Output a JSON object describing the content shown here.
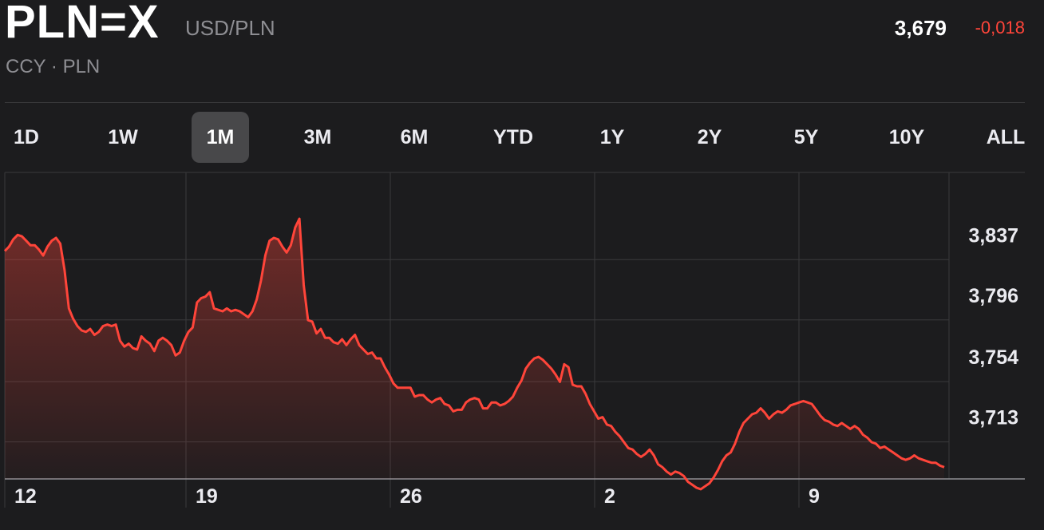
{
  "header": {
    "symbol": "PLN=X",
    "pair": "USD/PLN",
    "subtitle": "CCY · PLN",
    "price": "3,679",
    "change": "-0,018"
  },
  "ranges": [
    {
      "label": "1D",
      "active": false
    },
    {
      "label": "1W",
      "active": false
    },
    {
      "label": "1M",
      "active": true
    },
    {
      "label": "3M",
      "active": false
    },
    {
      "label": "6M",
      "active": false
    },
    {
      "label": "YTD",
      "active": false
    },
    {
      "label": "1Y",
      "active": false
    },
    {
      "label": "2Y",
      "active": false
    },
    {
      "label": "5Y",
      "active": false
    },
    {
      "label": "10Y",
      "active": false
    },
    {
      "label": "ALL",
      "active": false
    }
  ],
  "colors": {
    "line": "#ff453a",
    "positive_gain": "#ff453a",
    "background": "#1c1c1e"
  },
  "chart_data": {
    "type": "area",
    "title": "",
    "xlabel": "",
    "ylabel": "",
    "x_tick_labels": [
      "12",
      "19",
      "26",
      "2",
      "9"
    ],
    "y_tick_labels": [
      "3,837",
      "3,796",
      "3,754",
      "3,713"
    ],
    "y_ticks": [
      3.837,
      3.796,
      3.754,
      3.713
    ],
    "ylim": [
      3.671,
      3.8795
    ],
    "grid": true,
    "series": [
      {
        "values": [
          3.826,
          3.829,
          3.834,
          3.837,
          3.836,
          3.833,
          3.83,
          3.83,
          3.827,
          3.823,
          3.829,
          3.833,
          3.835,
          3.831,
          3.813,
          3.787,
          3.78,
          3.775,
          3.772,
          3.771,
          3.773,
          3.769,
          3.771,
          3.775,
          3.776,
          3.775,
          3.776,
          3.765,
          3.761,
          3.763,
          3.76,
          3.759,
          3.768,
          3.765,
          3.763,
          3.758,
          3.765,
          3.767,
          3.765,
          3.762,
          3.755,
          3.757,
          3.765,
          3.771,
          3.774,
          3.791,
          3.794,
          3.795,
          3.798,
          3.787,
          3.786,
          3.785,
          3.787,
          3.785,
          3.786,
          3.785,
          3.783,
          3.781,
          3.785,
          3.793,
          3.806,
          3.823,
          3.833,
          3.835,
          3.834,
          3.829,
          3.825,
          3.83,
          3.842,
          3.848,
          3.803,
          3.779,
          3.778,
          3.77,
          3.773,
          3.767,
          3.767,
          3.764,
          3.763,
          3.766,
          3.762,
          3.766,
          3.769,
          3.762,
          3.759,
          3.756,
          3.757,
          3.753,
          3.753,
          3.747,
          3.742,
          3.736,
          3.733,
          3.733,
          3.733,
          3.733,
          3.727,
          3.728,
          3.728,
          3.725,
          3.723,
          3.725,
          3.726,
          3.722,
          3.721,
          3.717,
          3.718,
          3.718,
          3.723,
          3.725,
          3.726,
          3.725,
          3.719,
          3.719,
          3.723,
          3.723,
          3.721,
          3.722,
          3.724,
          3.727,
          3.733,
          3.738,
          3.746,
          3.75,
          3.753,
          3.754,
          3.752,
          3.749,
          3.746,
          3.742,
          3.737,
          3.749,
          3.747,
          3.735,
          3.734,
          3.734,
          3.729,
          3.722,
          3.717,
          3.712,
          3.713,
          3.708,
          3.707,
          3.703,
          3.7,
          3.696,
          3.692,
          3.691,
          3.688,
          3.686,
          3.688,
          3.691,
          3.687,
          3.681,
          3.679,
          3.676,
          3.674,
          3.676,
          3.675,
          3.673,
          3.669,
          3.667,
          3.665,
          3.664,
          3.666,
          3.668,
          3.672,
          3.677,
          3.683,
          3.687,
          3.689,
          3.695,
          3.703,
          3.709,
          3.712,
          3.715,
          3.716,
          3.719,
          3.716,
          3.712,
          3.715,
          3.717,
          3.716,
          3.718,
          3.721,
          3.722,
          3.723,
          3.724,
          3.723,
          3.722,
          3.718,
          3.714,
          3.711,
          3.71,
          3.708,
          3.707,
          3.709,
          3.707,
          3.705,
          3.707,
          3.705,
          3.701,
          3.699,
          3.696,
          3.695,
          3.692,
          3.693,
          3.691,
          3.689,
          3.687,
          3.685,
          3.684,
          3.685,
          3.687,
          3.685,
          3.684,
          3.683,
          3.682,
          3.682,
          3.68,
          3.679
        ]
      }
    ]
  }
}
